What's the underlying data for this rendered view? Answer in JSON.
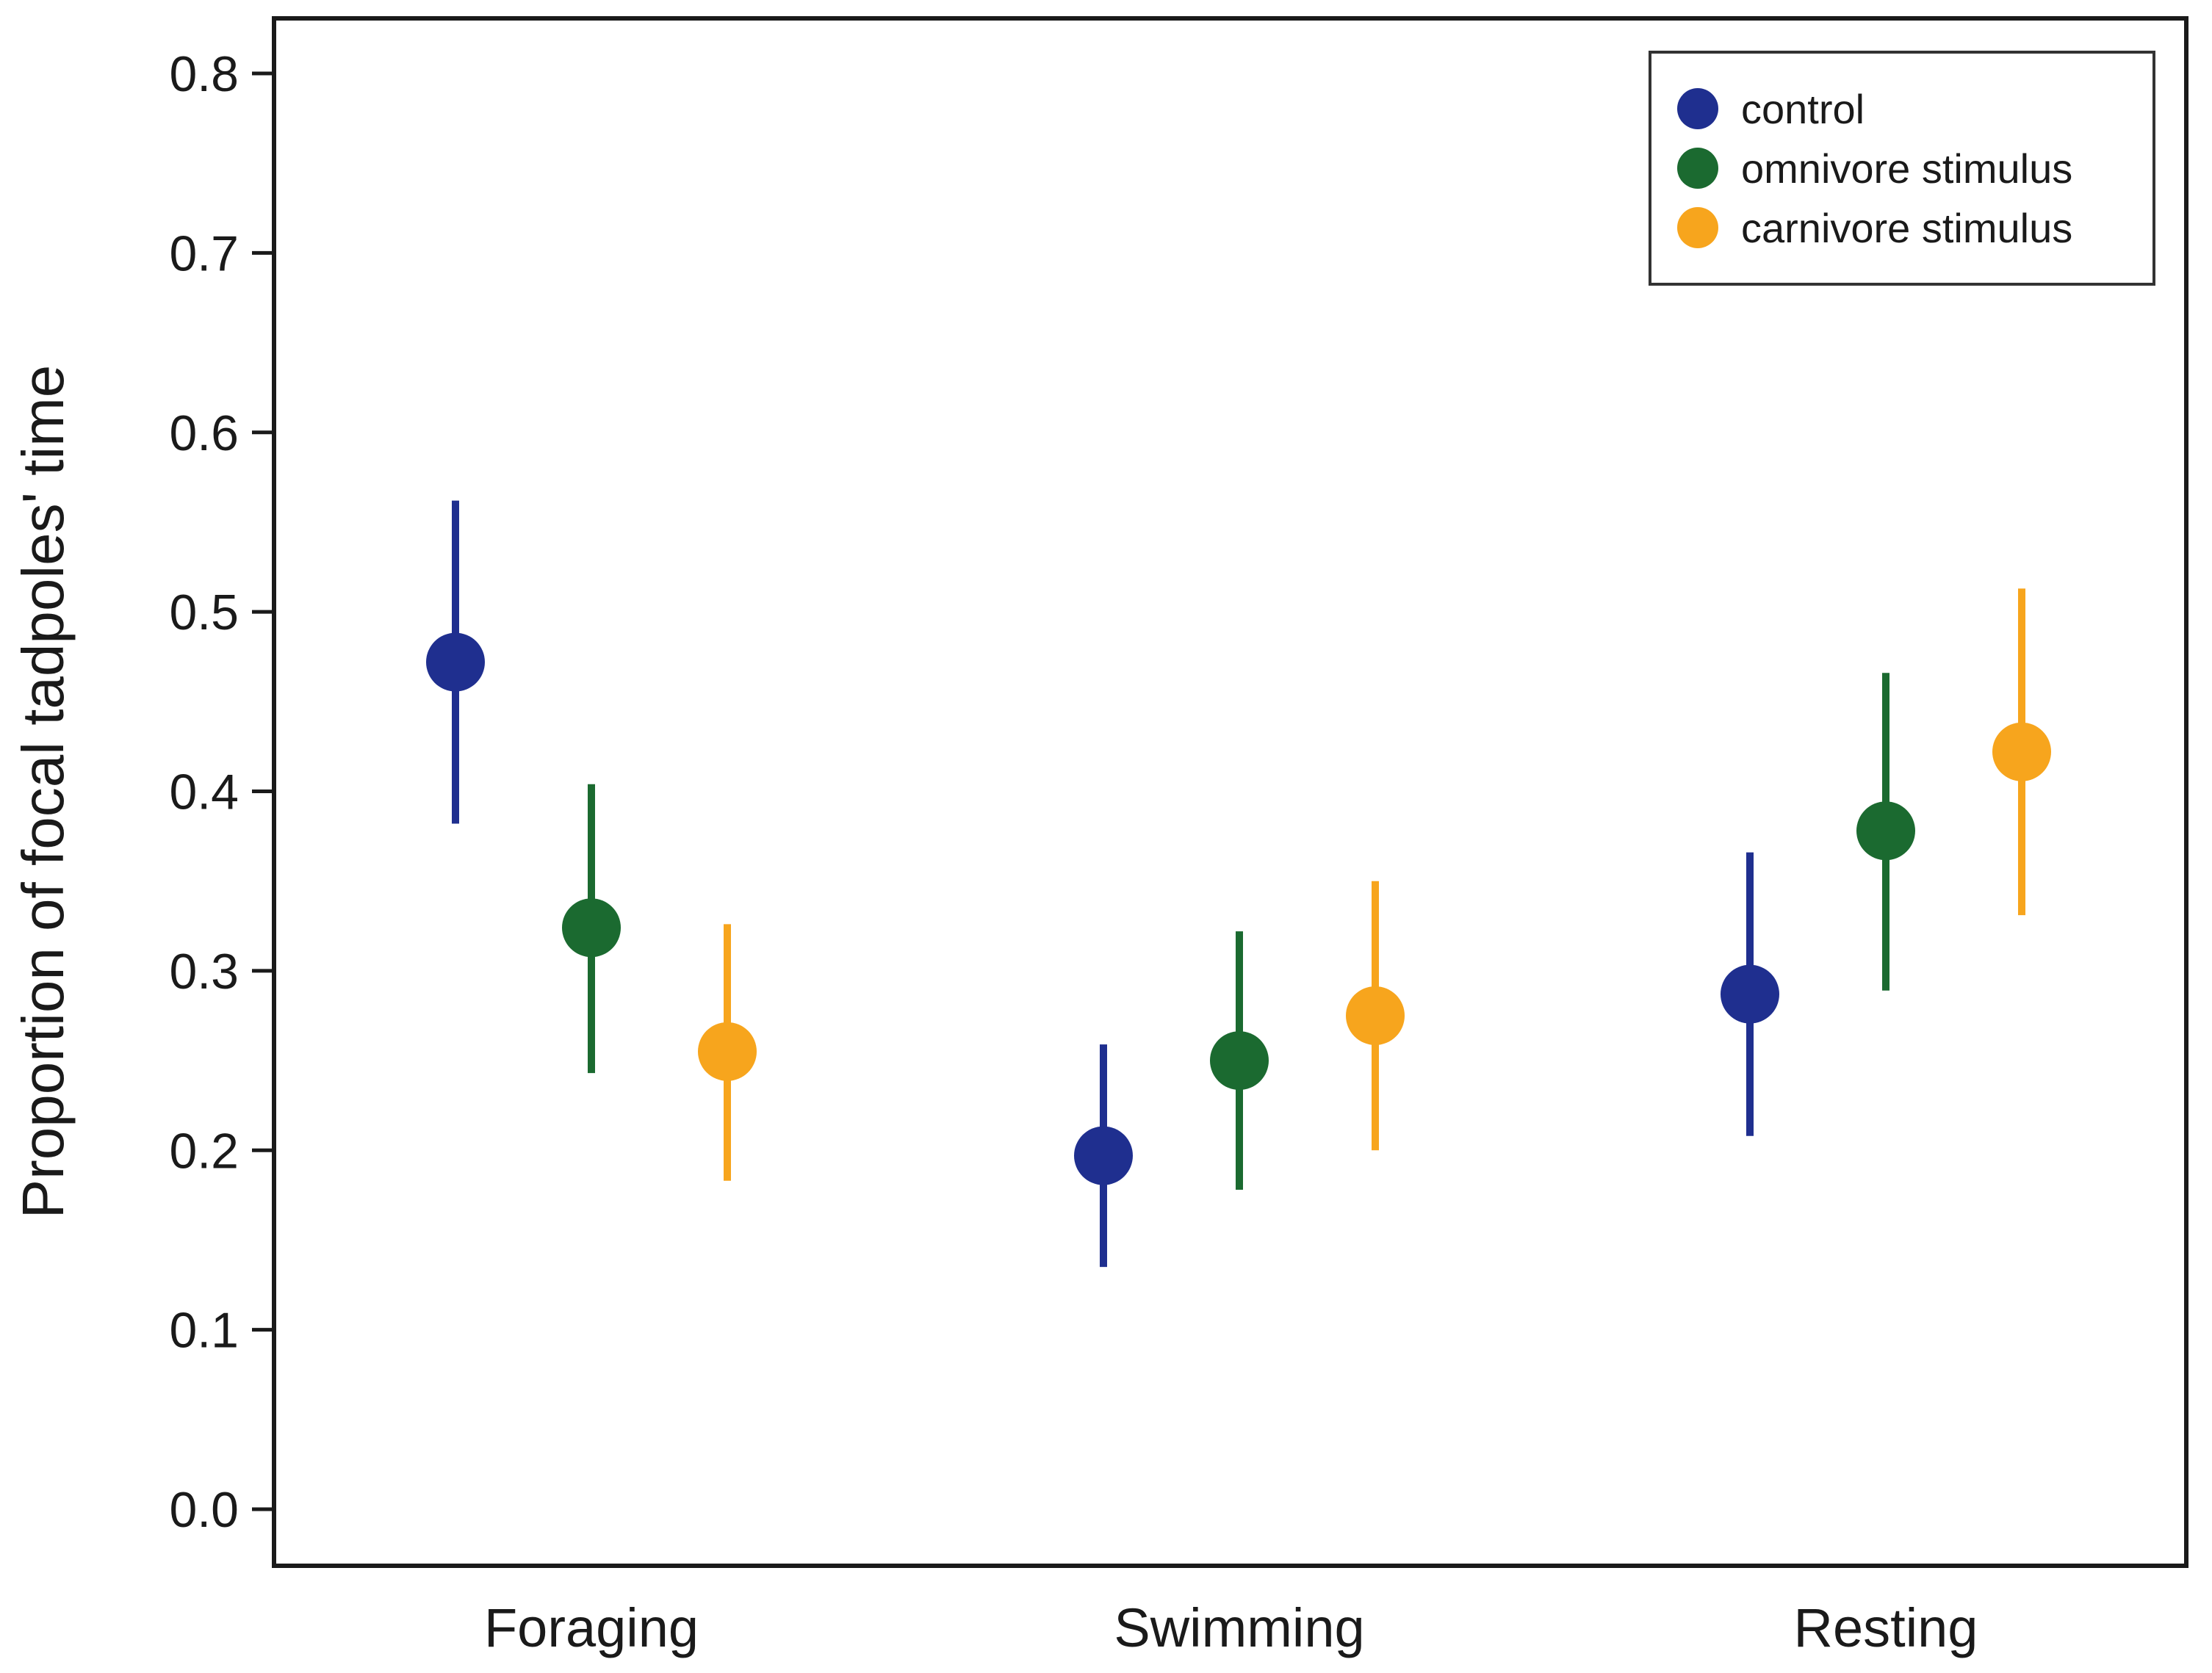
{
  "chart_data": {
    "type": "scatter",
    "ylabel": "Proportion of focal tadpoles' time",
    "xlabel": "",
    "categories": [
      "Foraging",
      "Swimming",
      "Resting"
    ],
    "ylim": [
      0.0,
      0.8
    ],
    "yticks": [
      "0.0",
      "0.1",
      "0.2",
      "0.3",
      "0.4",
      "0.5",
      "0.6",
      "0.7",
      "0.8"
    ],
    "legend_position": "top-right",
    "grid": false,
    "series": [
      {
        "name": "control",
        "color": "#1f2f8f",
        "values": [
          0.472,
          0.197,
          0.287
        ],
        "lower": [
          0.382,
          0.135,
          0.208
        ],
        "upper": [
          0.562,
          0.259,
          0.366
        ]
      },
      {
        "name": "omnivore stimulus",
        "color": "#1b6a30",
        "values": [
          0.324,
          0.25,
          0.378
        ],
        "lower": [
          0.243,
          0.178,
          0.289
        ],
        "upper": [
          0.404,
          0.322,
          0.466
        ]
      },
      {
        "name": "carnivore stimulus",
        "color": "#f7a51d",
        "values": [
          0.255,
          0.275,
          0.422
        ],
        "lower": [
          0.183,
          0.2,
          0.331
        ],
        "upper": [
          0.326,
          0.35,
          0.513
        ]
      }
    ]
  }
}
